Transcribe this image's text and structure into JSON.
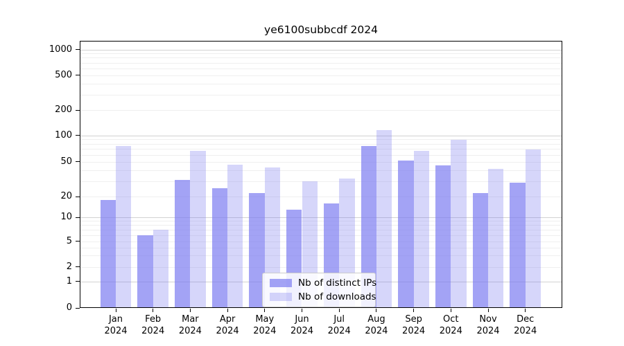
{
  "chart_data": {
    "type": "bar",
    "title": "ye6100subbcdf 2024",
    "categories": [
      "Jan",
      "Feb",
      "Mar",
      "Apr",
      "May",
      "Jun",
      "Jul",
      "Aug",
      "Sep",
      "Oct",
      "Nov",
      "Dec"
    ],
    "x_tick_year": "2024",
    "series": [
      {
        "name": "Nb of distinct IPs",
        "color": "#7878f0",
        "alpha": 0.68,
        "values": [
          18,
          6,
          31,
          25,
          22,
          13,
          16,
          76,
          51,
          45,
          22,
          29
        ]
      },
      {
        "name": "Nb of downloads",
        "color": "#7878f0",
        "alpha": 0.3,
        "values": [
          75,
          7,
          66,
          46,
          43,
          30,
          32,
          115,
          66,
          89,
          41,
          69
        ]
      }
    ],
    "yscale": "symlog",
    "yticks": [
      0,
      1,
      2,
      5,
      10,
      20,
      50,
      100,
      200,
      500,
      1000
    ],
    "ylim": [
      0,
      1400
    ],
    "xlabel": "",
    "ylabel": "",
    "grid": "major+minor horizontal",
    "legend_position": "inside lower center"
  },
  "colors": {
    "bar_base": "#7878f0",
    "grid_major": "#d2d2d2",
    "grid_minor": "#efefef",
    "axis": "#000000",
    "legend_border": "#cccccc",
    "legend_bg": "#ffffff"
  }
}
